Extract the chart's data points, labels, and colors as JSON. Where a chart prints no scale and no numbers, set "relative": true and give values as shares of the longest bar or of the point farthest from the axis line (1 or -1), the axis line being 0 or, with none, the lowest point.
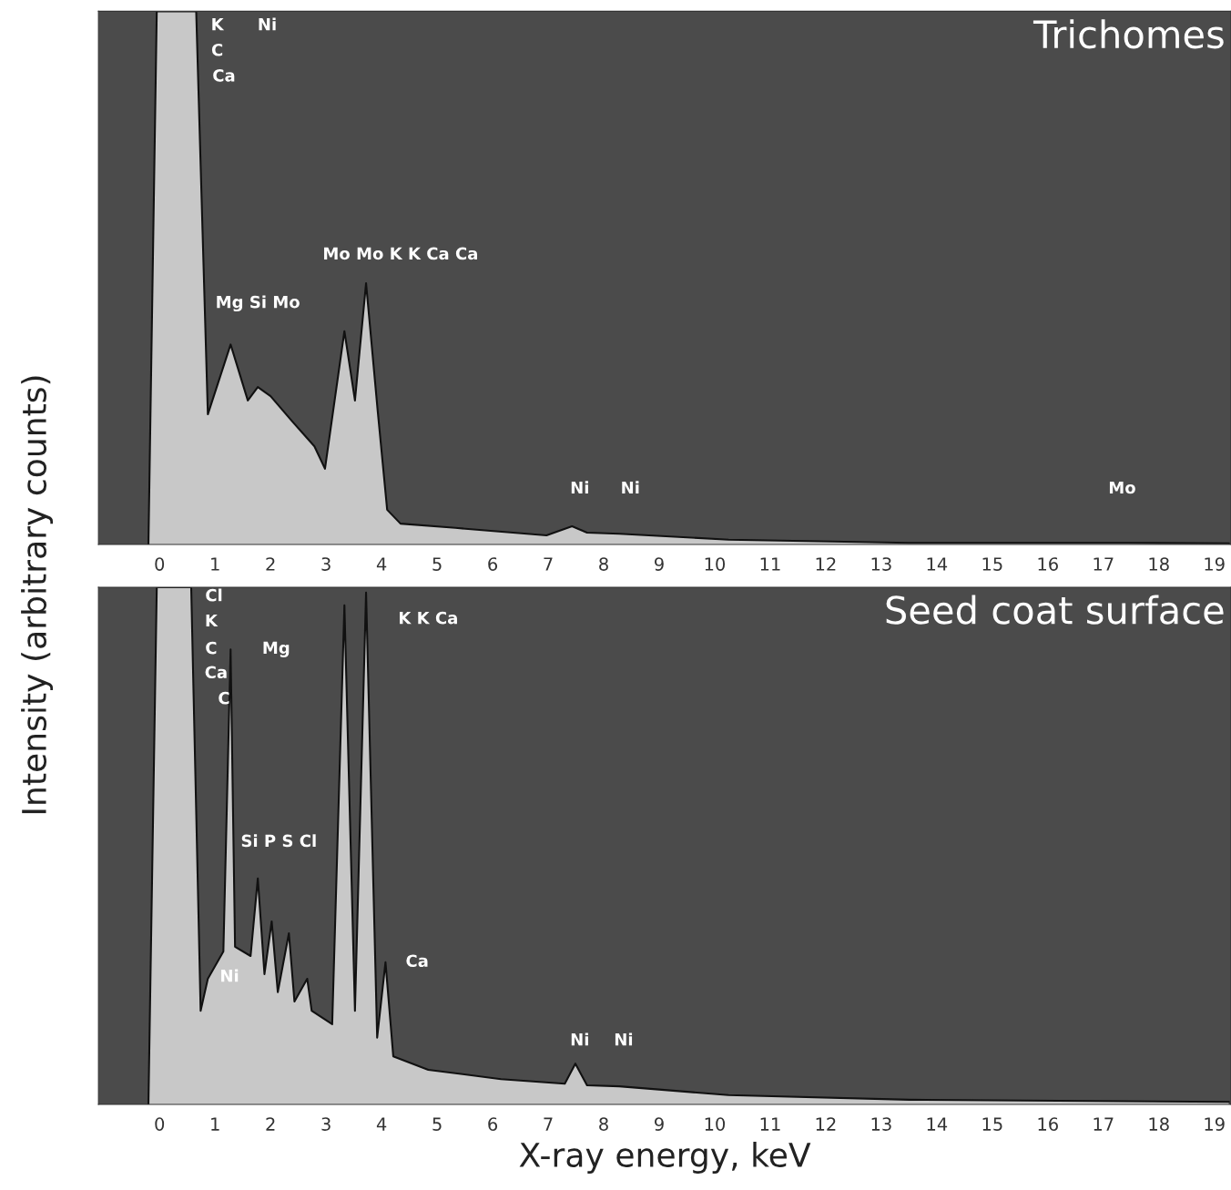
{
  "chart_data": [
    {
      "type": "area",
      "relative": true,
      "title": "Trichomes",
      "ylabel": "Intensity (arbitrary counts)",
      "xlim": [
        -1.1,
        19.3
      ],
      "xticks": [
        0,
        1,
        2,
        3,
        4,
        5,
        6,
        7,
        8,
        9,
        10,
        11,
        12,
        13,
        14,
        15,
        16,
        17,
        18,
        19
      ],
      "grid": false,
      "legend": false,
      "x": [
        -0.2,
        -0.05,
        0.66,
        0.87,
        1.28,
        1.59,
        1.77,
        2.0,
        2.38,
        2.79,
        2.98,
        3.33,
        3.52,
        3.72,
        3.93,
        4.1,
        4.34,
        5.33,
        6.97,
        7.43,
        7.7,
        8.28,
        10.25,
        13.5,
        17.46,
        19.26
      ],
      "series": [
        {
          "color": "#c8c8c8",
          "values": [
            0,
            1,
            1,
            0.244,
            0.375,
            0.27,
            0.295,
            0.278,
            0.232,
            0.184,
            0.142,
            0.4,
            0.27,
            0.49,
            0.25,
            0.065,
            0.039,
            0.031,
            0.017,
            0.034,
            0.022,
            0.02,
            0.009,
            0.003,
            0.003,
            0.002
          ]
        }
      ],
      "annotations": [
        "K",
        "Ni",
        "C",
        "Ca",
        "Mg Si Mo",
        "Mo Mo K K Ca Ca",
        "Ni",
        "Ni",
        "Mo"
      ]
    },
    {
      "type": "area",
      "relative": true,
      "title": "Seed coat surface",
      "xlabel": "X-ray energy, keV",
      "xlim": [
        -1.1,
        19.3
      ],
      "xticks": [
        0,
        1,
        2,
        3,
        4,
        5,
        6,
        7,
        8,
        9,
        10,
        11,
        12,
        13,
        14,
        15,
        16,
        17,
        18,
        19
      ],
      "grid": false,
      "legend": false,
      "x": [
        -0.2,
        -0.05,
        0.57,
        0.74,
        0.87,
        1.15,
        1.28,
        1.36,
        1.64,
        1.77,
        1.89,
        2.02,
        2.13,
        2.33,
        2.43,
        2.66,
        2.74,
        3.11,
        3.33,
        3.52,
        3.72,
        3.92,
        4.07,
        4.21,
        4.84,
        6.15,
        7.3,
        7.49,
        7.7,
        8.28,
        10.25,
        13.5,
        19.26
      ],
      "series": [
        {
          "color": "#c8c8c8",
          "values": [
            0,
            1,
            1,
            0.181,
            0.243,
            0.296,
            0.88,
            0.305,
            0.287,
            0.437,
            0.252,
            0.354,
            0.217,
            0.331,
            0.199,
            0.243,
            0.181,
            0.155,
            0.965,
            0.181,
            0.99,
            0.129,
            0.275,
            0.093,
            0.067,
            0.049,
            0.04,
            0.079,
            0.037,
            0.035,
            0.018,
            0.009,
            0.005
          ]
        }
      ],
      "annotations": [
        "Cl",
        "K",
        "C",
        "Mg",
        "Ca",
        "C",
        "K K Ca",
        "Si P S Cl",
        "Ni",
        "Ca",
        "Ni",
        "Ni"
      ]
    }
  ]
}
